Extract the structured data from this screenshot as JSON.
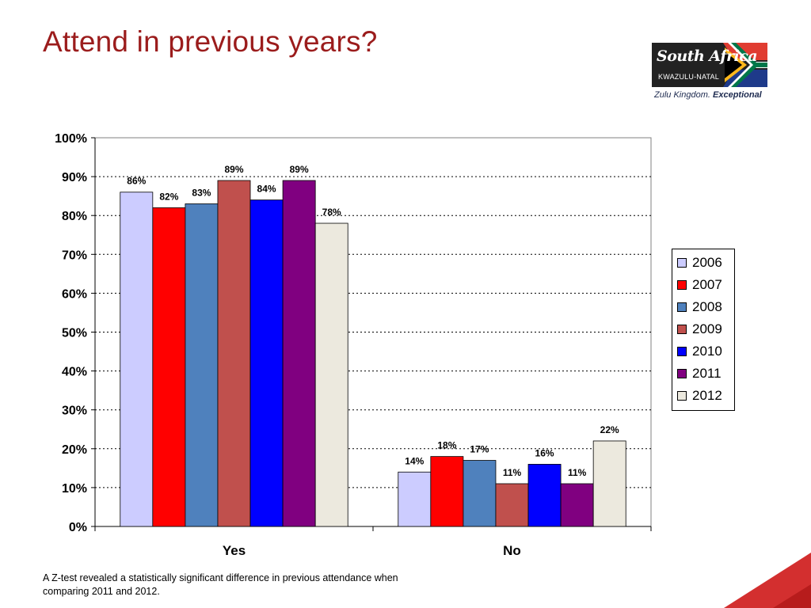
{
  "slide": {
    "title": "Attend in previous years?",
    "footnote": "A Z-test revealed a statistically significant difference in previous attendance when comparing 2011 and 2012."
  },
  "logo": {
    "brand": "South Africa",
    "region": "KWAZULU-NATAL",
    "tagline_main": "Zulu Kingdom.",
    "tagline_bold": "Exceptional"
  },
  "chart_data": {
    "type": "bar",
    "title": "",
    "xlabel": "",
    "ylabel": "",
    "categories": [
      "Yes",
      "No"
    ],
    "ylim": [
      0,
      100
    ],
    "y_ticks": [
      "0%",
      "10%",
      "20%",
      "30%",
      "40%",
      "50%",
      "60%",
      "70%",
      "80%",
      "90%",
      "100%"
    ],
    "grid": "horizontal dotted",
    "legend_position": "right",
    "series": [
      {
        "name": "2006",
        "color": "#ccccff",
        "values": [
          86,
          14
        ],
        "labels": [
          "86%",
          "14%"
        ]
      },
      {
        "name": "2007",
        "color": "#ff0000",
        "values": [
          82,
          18
        ],
        "labels": [
          "82%",
          "18%"
        ]
      },
      {
        "name": "2008",
        "color": "#4f81bd",
        "values": [
          83,
          17
        ],
        "labels": [
          "83%",
          "17%"
        ]
      },
      {
        "name": "2009",
        "color": "#c0504d",
        "values": [
          89,
          11
        ],
        "labels": [
          "89%",
          "11%"
        ]
      },
      {
        "name": "2010",
        "color": "#0000ff",
        "values": [
          84,
          16
        ],
        "labels": [
          "84%",
          "16%"
        ]
      },
      {
        "name": "2011",
        "color": "#800080",
        "values": [
          89,
          11
        ],
        "labels": [
          "89%",
          "11%"
        ]
      },
      {
        "name": "2012",
        "color": "#ece9de",
        "values": [
          78,
          22
        ],
        "labels": [
          "78%",
          "22%"
        ]
      }
    ]
  }
}
